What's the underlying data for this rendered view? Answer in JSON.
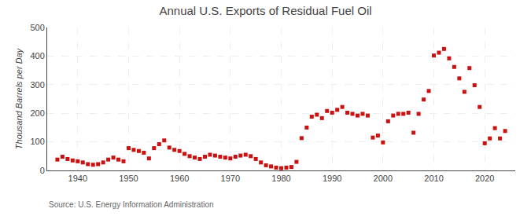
{
  "chart_data": {
    "type": "scatter",
    "title": "Annual U.S. Exports of Residual Fuel Oil",
    "ylabel": "Thousand Barrels per Day",
    "annotations": [
      "Source: U.S. Energy Information Administration"
    ],
    "color": "#cc1111",
    "marker": "square",
    "grid": true,
    "xlim": [
      1934,
      2026
    ],
    "xticks": [
      1940,
      1950,
      1960,
      1970,
      1980,
      1990,
      2000,
      2010,
      2020
    ],
    "ylim": [
      0,
      500
    ],
    "yticks": [
      0,
      100,
      200,
      300,
      400,
      500
    ],
    "x": [
      1936,
      1937,
      1938,
      1939,
      1940,
      1941,
      1942,
      1943,
      1944,
      1945,
      1946,
      1947,
      1948,
      1949,
      1950,
      1951,
      1952,
      1953,
      1954,
      1955,
      1956,
      1957,
      1958,
      1959,
      1960,
      1961,
      1962,
      1963,
      1964,
      1965,
      1966,
      1967,
      1968,
      1969,
      1970,
      1971,
      1972,
      1973,
      1974,
      1975,
      1976,
      1977,
      1978,
      1979,
      1980,
      1981,
      1982,
      1983,
      1984,
      1985,
      1986,
      1987,
      1988,
      1989,
      1990,
      1991,
      1992,
      1993,
      1994,
      1995,
      1996,
      1997,
      1998,
      1999,
      2000,
      2001,
      2002,
      2003,
      2004,
      2005,
      2006,
      2007,
      2008,
      2009,
      2010,
      2011,
      2012,
      2013,
      2014,
      2015,
      2016,
      2017,
      2018,
      2019,
      2020,
      2021,
      2022,
      2023,
      2024
    ],
    "values": [
      38,
      48,
      40,
      35,
      32,
      28,
      22,
      20,
      22,
      28,
      38,
      45,
      38,
      32,
      78,
      72,
      68,
      62,
      42,
      78,
      92,
      105,
      80,
      72,
      68,
      58,
      50,
      45,
      40,
      48,
      55,
      52,
      48,
      45,
      42,
      48,
      52,
      55,
      50,
      40,
      28,
      18,
      14,
      10,
      8,
      10,
      12,
      30,
      113,
      150,
      188,
      195,
      183,
      208,
      202,
      212,
      222,
      202,
      198,
      192,
      198,
      192,
      115,
      122,
      98,
      172,
      192,
      198,
      198,
      202,
      132,
      198,
      248,
      278,
      402,
      412,
      425,
      392,
      362,
      322,
      275,
      358,
      298,
      222,
      95,
      112,
      148,
      112,
      138
    ]
  }
}
